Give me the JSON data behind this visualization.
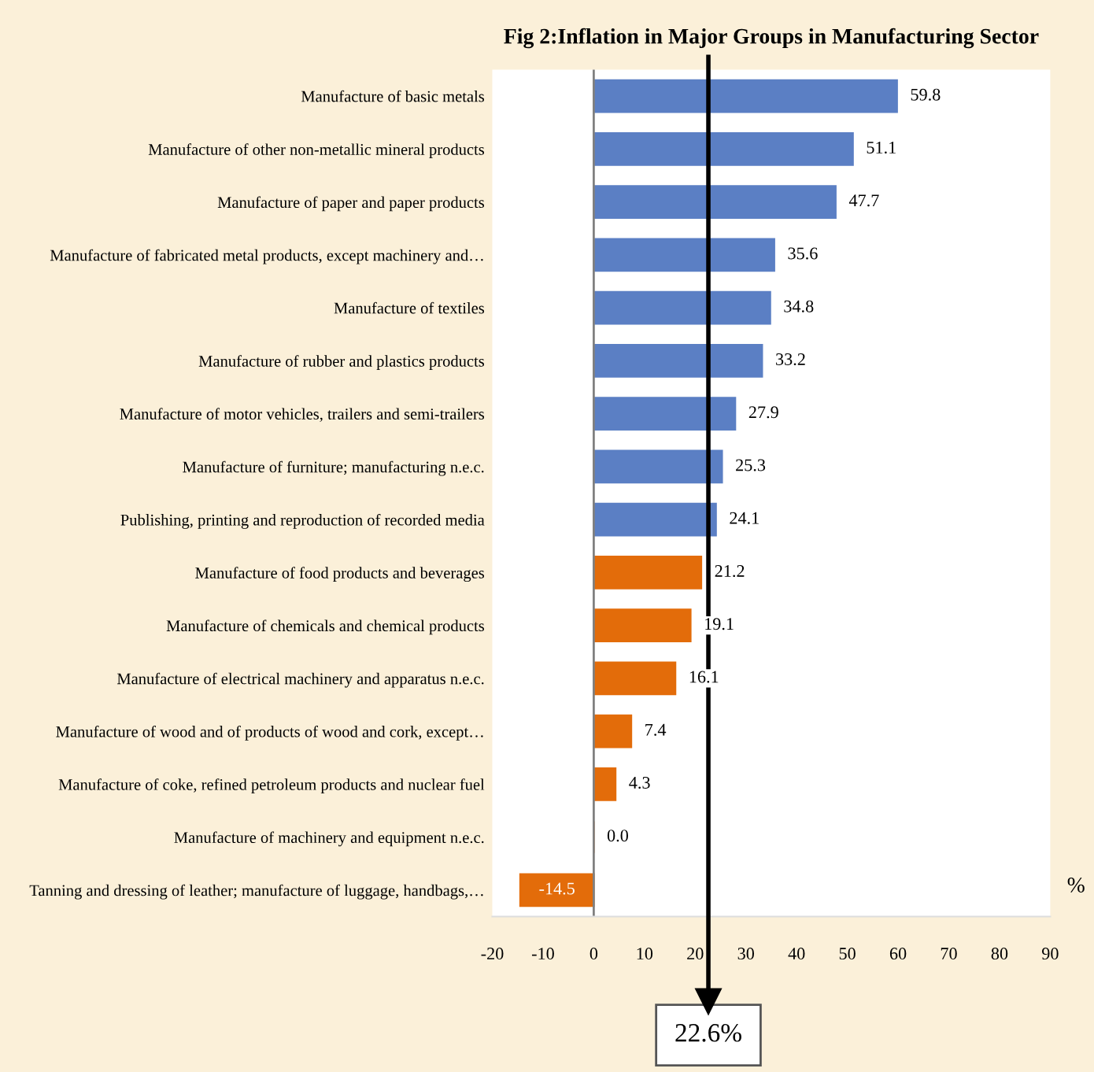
{
  "chart_data": {
    "type": "bar",
    "orientation": "horizontal",
    "title": "Fig 2:Inflation in Major Groups in Manufacturing Sector",
    "xlabel": "%",
    "categories": [
      "Manufacture of basic metals",
      "Manufacture of other non-metallic mineral products",
      "Manufacture of paper and paper products",
      "Manufacture of fabricated metal products, except machinery and…",
      "Manufacture of textiles",
      "Manufacture of rubber and plastics products",
      "Manufacture of motor vehicles, trailers and semi-trailers",
      "Manufacture of furniture; manufacturing n.e.c.",
      "Publishing, printing and reproduction of recorded media",
      "Manufacture of food products and beverages",
      "Manufacture of chemicals and chemical products",
      "Manufacture of electrical machinery and apparatus n.e.c.",
      "Manufacture of wood and of products of wood and cork, except…",
      "Manufacture of coke, refined petroleum products and nuclear fuel",
      "Manufacture of machinery and equipment n.e.c.",
      "Tanning and dressing of leather; manufacture of luggage, handbags,…"
    ],
    "values": [
      59.8,
      51.1,
      47.7,
      35.6,
      34.8,
      33.2,
      27.9,
      25.3,
      24.1,
      21.2,
      19.1,
      16.1,
      7.4,
      4.3,
      0.0,
      -14.5
    ],
    "value_labels": [
      "59.8",
      "51.1",
      "47.7",
      "35.6",
      "34.8",
      "33.2",
      "27.9",
      "25.3",
      "24.1",
      "21.2",
      "19.1",
      "16.1",
      "7.4",
      "4.3",
      "0.0",
      "-14.5"
    ],
    "colors": [
      "#5b7fc4",
      "#5b7fc4",
      "#5b7fc4",
      "#5b7fc4",
      "#5b7fc4",
      "#5b7fc4",
      "#5b7fc4",
      "#5b7fc4",
      "#5b7fc4",
      "#e36c0a",
      "#e36c0a",
      "#e36c0a",
      "#e36c0a",
      "#e36c0a",
      "#e36c0a",
      "#e36c0a"
    ],
    "xlim": [
      -20,
      90
    ],
    "xticks": [
      -20,
      -10,
      0,
      10,
      20,
      30,
      40,
      50,
      60,
      70,
      80,
      90
    ],
    "ref_lines": [
      {
        "axis": "x",
        "value": 22.6,
        "label": "22.6%",
        "color": "#000000"
      }
    ]
  }
}
